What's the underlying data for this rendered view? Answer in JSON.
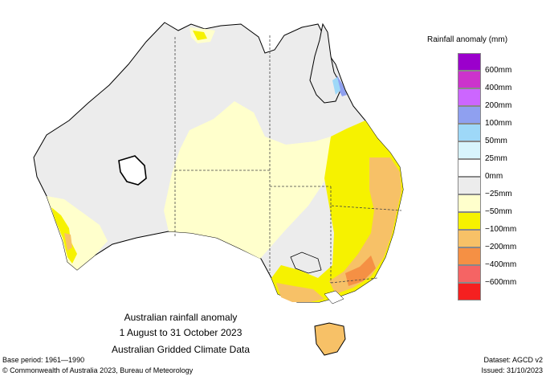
{
  "legend": {
    "title": "Rainfall anomaly (mm)",
    "items": [
      {
        "label": "600mm",
        "color": "#9b00cc"
      },
      {
        "label": "400mm",
        "color": "#cc33cc"
      },
      {
        "label": "200mm",
        "color": "#cc66ff"
      },
      {
        "label": "100mm",
        "color": "#8fa0f0"
      },
      {
        "label": "50mm",
        "color": "#9ed8f8"
      },
      {
        "label": "25mm",
        "color": "#d8f4fc"
      },
      {
        "label": "0mm",
        "color": "#ffffff"
      },
      {
        "label": "−25mm",
        "color": "#ececec"
      },
      {
        "label": "−50mm",
        "color": "#ffffcc"
      },
      {
        "label": "−100mm",
        "color": "#f6f200"
      },
      {
        "label": "−200mm",
        "color": "#f7c167"
      },
      {
        "label": "−400mm",
        "color": "#f59044"
      },
      {
        "label": "−600mm",
        "color": "#f56464"
      },
      {
        "label": "",
        "color": "#f52020"
      }
    ]
  },
  "title": {
    "line1": "Australian rainfall anomaly",
    "line2": "1 August to 31 October 2023",
    "line3": "Australian Gridded Climate Data"
  },
  "footer": {
    "base_period": "Base period: 1961—1990",
    "dataset": "Dataset: AGCD v2",
    "copyright": "© Commonwealth of Australia 2023, Bureau of Meteorology",
    "issued": "Issued: 31/10/2023"
  }
}
